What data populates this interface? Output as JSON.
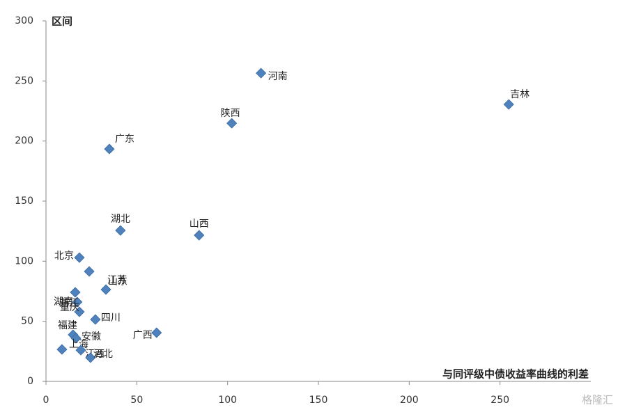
{
  "chart_data": {
    "type": "scatter",
    "y_label": "区间",
    "x_label": "与同评级中债收益率曲线的利差",
    "watermark": "格隆汇",
    "color": "#4f81bd",
    "xlim": [
      0,
      300
    ],
    "xticks": [
      0,
      50,
      100,
      150,
      200,
      250
    ],
    "ylim": [
      0,
      300
    ],
    "yticks": [
      0,
      50,
      100,
      150,
      200,
      250,
      300
    ],
    "labels": [
      "河南",
      "吉林",
      "陕西",
      "广东",
      "湖北",
      "山西",
      "北京",
      "江苏",
      "山东",
      "湖南",
      "浙江",
      "重庆",
      "四川",
      "广西",
      "福建",
      "安徽",
      "上海",
      "江西",
      "河北"
    ],
    "x": [
      118.4,
      254.8,
      102.3,
      34.9,
      41,
      84.3,
      18.4,
      23.8,
      33,
      16.1,
      17.2,
      18.4,
      27.2,
      60.9,
      14.9,
      16.5,
      8.8,
      19.2,
      24.5
    ],
    "values": [
      256.5,
      230.5,
      214.8,
      193.4,
      125.6,
      121.6,
      103,
      91.5,
      76.4,
      74.1,
      66,
      57.9,
      51.5,
      40.5,
      38.8,
      35.9,
      26.6,
      26,
      19.7
    ]
  }
}
